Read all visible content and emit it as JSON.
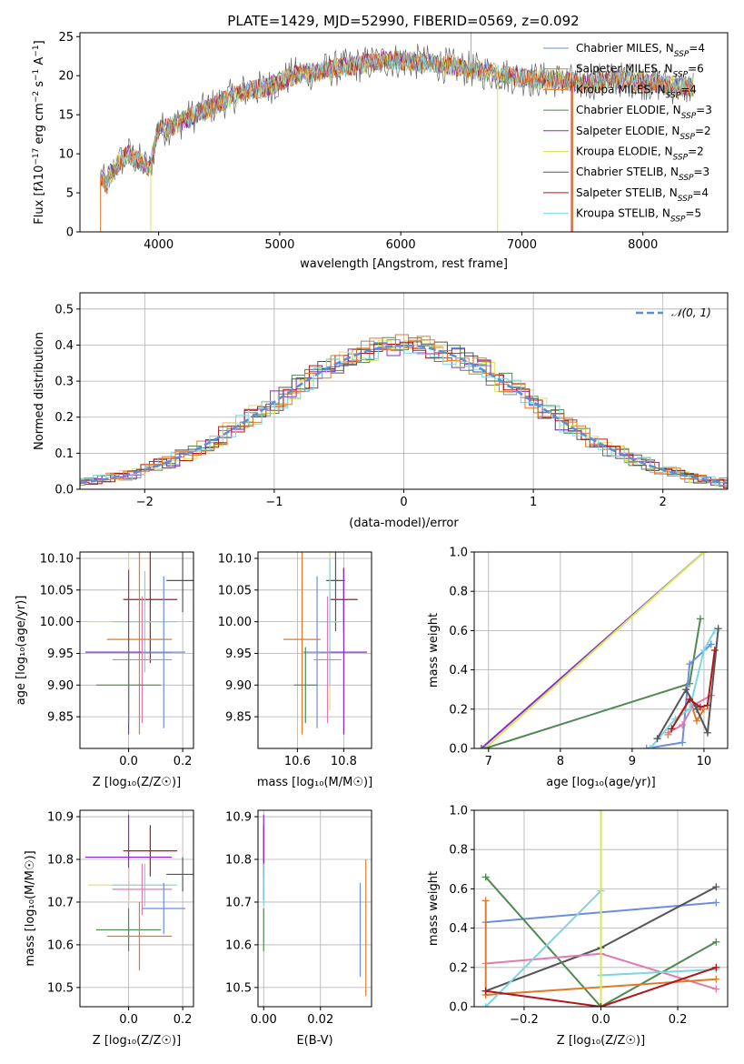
{
  "title": "PLATE=1429, MJD=52990, FIBERID=0569, z=0.092",
  "colors": {
    "chabrier_miles": "#6b8fd9",
    "salpeter_miles": "#e07a2a",
    "kroupa_miles": "#e07a2a",
    "chabrier_elodie": "#4f8a52",
    "salpeter_elodie": "#8a2bc9",
    "kroupa_elodie": "#d4e85a",
    "chabrier_stelib": "#555555",
    "salpeter_stelib": "#b01818",
    "kroupa_stelib": "#7dd6de",
    "pink": "#e07ab0",
    "gauss": "#5b8dd9"
  },
  "chart_data": [
    {
      "id": "spectrum",
      "type": "line",
      "xlabel": "wavelength [Angstrom, rest frame]",
      "ylabel_parts": [
        "Flux [f",
        "λ",
        "10",
        "−17",
        " erg cm",
        "−2",
        " s",
        "−1",
        " A",
        "−1",
        "]"
      ],
      "xlim": [
        3350,
        8700
      ],
      "ylim": [
        0,
        25.5
      ],
      "xticks": [
        4000,
        5000,
        6000,
        7000,
        8000
      ],
      "yticks": [
        0,
        5,
        10,
        15,
        20,
        25
      ],
      "spectrum_anchor_points": [
        [
          3520,
          7
        ],
        [
          3560,
          6
        ],
        [
          3650,
          8.5
        ],
        [
          3750,
          10
        ],
        [
          3850,
          9
        ],
        [
          3930,
          8
        ],
        [
          3990,
          13
        ],
        [
          4100,
          13.5
        ],
        [
          4300,
          15
        ],
        [
          4500,
          16.5
        ],
        [
          4700,
          18
        ],
        [
          4900,
          18.5
        ],
        [
          5100,
          20
        ],
        [
          5300,
          20.5
        ],
        [
          5500,
          21
        ],
        [
          5700,
          21.5
        ],
        [
          5900,
          22
        ],
        [
          6100,
          21.8
        ],
        [
          6300,
          21.5
        ],
        [
          6500,
          21
        ],
        [
          6700,
          20.5
        ],
        [
          6900,
          20
        ],
        [
          7100,
          19.5
        ],
        [
          7300,
          19.5
        ],
        [
          7500,
          19
        ],
        [
          7700,
          19.5
        ],
        [
          7900,
          19.5
        ],
        [
          8100,
          19
        ],
        [
          8300,
          18.5
        ]
      ],
      "legend": [
        {
          "label": "Chabrier MILES, N",
          "sub": "SSP",
          "tail": "=4",
          "color": "#6b8fd9"
        },
        {
          "label": "Salpeter MILES, N",
          "sub": "SSP",
          "tail": "=6",
          "color": "#e07a2a"
        },
        {
          "label": "Kroupa MILES, N",
          "sub": "SSP",
          "tail": "=4",
          "color": "#e07a2a"
        },
        {
          "label": "Chabrier ELODIE, N",
          "sub": "SSP",
          "tail": "=3",
          "color": "#4f8a52"
        },
        {
          "label": "Salpeter ELODIE, N",
          "sub": "SSP",
          "tail": "=2",
          "color": "#8a2bc9"
        },
        {
          "label": "Kroupa ELODIE, N",
          "sub": "SSP",
          "tail": "=2",
          "color": "#d4e85a"
        },
        {
          "label": "Chabrier STELIB, N",
          "sub": "SSP",
          "tail": "=3",
          "color": "#555555"
        },
        {
          "label": "Salpeter STELIB, N",
          "sub": "SSP",
          "tail": "=4",
          "color": "#b01818"
        },
        {
          "label": "Kroupa STELIB, N",
          "sub": "SSP",
          "tail": "=5",
          "color": "#7dd6de"
        }
      ]
    },
    {
      "id": "residual-histogram",
      "type": "line",
      "xlabel": "(data-model)/error",
      "ylabel": "Normed distribution",
      "xlim": [
        -2.5,
        2.5
      ],
      "ylim": [
        0,
        0.545
      ],
      "xticks": [
        -2,
        -1,
        0,
        1,
        2
      ],
      "yticks": [
        0,
        0.1,
        0.2,
        0.3,
        0.4,
        0.5
      ],
      "legend": [
        {
          "label": "𝒩(0, 1)",
          "color": "#5b8dd9",
          "style": "dashed"
        }
      ]
    },
    {
      "id": "age-vs-Z",
      "type": "scatter",
      "xlabel": "Z [log₁₀(Z/Z☉)]",
      "ylabel": "age  [log₁₀(age/yr)]",
      "xlim": [
        -0.18,
        0.24
      ],
      "ylim": [
        9.8,
        10.11
      ],
      "xticks": [
        0.0,
        0.2
      ],
      "yticks": [
        9.85,
        9.9,
        9.95,
        10.0,
        10.05,
        10.1
      ],
      "points": [
        {
          "x": 0.08,
          "y": 10.035,
          "xerr": 0.1,
          "yerr": 0.1,
          "color": "#b01818"
        },
        {
          "x": 0.2,
          "y": 10.065,
          "xerr": 0.06,
          "yerr": 0.05,
          "color": "#555555"
        },
        {
          "x": 0.0,
          "y": 10.0,
          "xerr": 0.15,
          "yerr": 0.14,
          "color": "#d4e85a"
        },
        {
          "x": 0.06,
          "y": 10.0,
          "xerr": 0.12,
          "yerr": 0.08,
          "color": "#7dd6de"
        },
        {
          "x": 0.04,
          "y": 9.972,
          "xerr": 0.12,
          "yerr": 0.15,
          "color": "#e07a2a"
        },
        {
          "x": 0.0,
          "y": 9.952,
          "xerr": 0.16,
          "yerr": 0.13,
          "color": "#8a2bc9"
        },
        {
          "x": 0.13,
          "y": 9.952,
          "xerr": 0.08,
          "yerr": 0.12,
          "color": "#6b8fd9"
        },
        {
          "x": 0.05,
          "y": 9.94,
          "xerr": 0.11,
          "yerr": 0.1,
          "color": "#e07ab0"
        },
        {
          "x": 0.0,
          "y": 9.9,
          "xerr": 0.12,
          "yerr": 0.06,
          "color": "#4f8a52"
        }
      ]
    },
    {
      "id": "age-vs-mass",
      "type": "scatter",
      "xlabel": "mass [log₁₀(M/M☉)]",
      "xlim": [
        10.43,
        10.92
      ],
      "ylim": [
        9.8,
        10.11
      ],
      "xticks": [
        10.6,
        10.8
      ],
      "yticks": [
        9.85,
        9.9,
        9.95,
        10.0,
        10.05,
        10.1
      ],
      "points": [
        {
          "x": 10.8,
          "y": 10.035,
          "xerr": 0.06,
          "yerr": 0.05,
          "color": "#b01818"
        },
        {
          "x": 10.765,
          "y": 10.065,
          "xerr": 0.04,
          "yerr": 0.08,
          "color": "#555555"
        },
        {
          "x": 10.74,
          "y": 10.0,
          "xerr": 0.04,
          "yerr": 0.14,
          "color": "#d4e85a"
        },
        {
          "x": 10.74,
          "y": 10.0,
          "xerr": 0.05,
          "yerr": 0.1,
          "color": "#7dd6de"
        },
        {
          "x": 10.62,
          "y": 9.972,
          "xerr": 0.08,
          "yerr": 0.15,
          "color": "#e07a2a"
        },
        {
          "x": 10.8,
          "y": 9.952,
          "xerr": 0.1,
          "yerr": 0.13,
          "color": "#8a2bc9"
        },
        {
          "x": 10.685,
          "y": 9.952,
          "xerr": 0.06,
          "yerr": 0.12,
          "color": "#6b8fd9"
        },
        {
          "x": 10.73,
          "y": 9.94,
          "xerr": 0.06,
          "yerr": 0.1,
          "color": "#e07ab0"
        },
        {
          "x": 10.635,
          "y": 9.9,
          "xerr": 0.05,
          "yerr": 0.06,
          "color": "#4f8a52"
        }
      ]
    },
    {
      "id": "mass-weight-vs-age",
      "type": "line",
      "xlabel": "age  [log₁₀(age/yr)]",
      "ylabel": "mass weight",
      "xlim": [
        6.8,
        10.33
      ],
      "ylim": [
        0,
        1.0
      ],
      "xticks": [
        7,
        8,
        9,
        10
      ],
      "yticks": [
        0.0,
        0.2,
        0.4,
        0.6,
        0.8,
        1.0
      ],
      "series": [
        {
          "color": "#8a2bc9",
          "points": [
            [
              6.9,
              0.0
            ],
            [
              10.0,
              1.0
            ]
          ]
        },
        {
          "color": "#d4e85a",
          "points": [
            [
              6.95,
              0.0
            ],
            [
              10.0,
              1.0
            ]
          ]
        },
        {
          "color": "#4f8a52",
          "points": [
            [
              6.95,
              0.0
            ],
            [
              9.8,
              0.33
            ],
            [
              9.95,
              0.66
            ]
          ]
        },
        {
          "color": "#6b8fd9",
          "points": [
            [
              9.2,
              0.0
            ],
            [
              9.7,
              0.03
            ],
            [
              9.8,
              0.43
            ],
            [
              10.1,
              0.53
            ]
          ]
        },
        {
          "color": "#e07a2a",
          "points": [
            [
              9.5,
              0.07
            ],
            [
              9.8,
              0.25
            ],
            [
              9.9,
              0.14
            ],
            [
              10.0,
              0.2
            ]
          ]
        },
        {
          "color": "#e07ab0",
          "points": [
            [
              9.5,
              0.08
            ],
            [
              9.7,
              0.12
            ],
            [
              9.85,
              0.22
            ],
            [
              10.1,
              0.27
            ]
          ]
        },
        {
          "color": "#7dd6de",
          "points": [
            [
              9.25,
              0.0
            ],
            [
              9.6,
              0.15
            ],
            [
              9.8,
              0.2
            ],
            [
              10.0,
              0.5
            ],
            [
              10.15,
              0.6
            ]
          ]
        },
        {
          "color": "#555555",
          "points": [
            [
              9.35,
              0.05
            ],
            [
              9.75,
              0.3
            ],
            [
              9.9,
              0.2
            ],
            [
              10.05,
              0.08
            ],
            [
              10.2,
              0.61
            ]
          ]
        },
        {
          "color": "#b01818",
          "points": [
            [
              9.55,
              0.1
            ],
            [
              9.8,
              0.25
            ],
            [
              9.95,
              0.21
            ],
            [
              10.05,
              0.22
            ],
            [
              10.15,
              0.5
            ]
          ]
        }
      ]
    },
    {
      "id": "mass-vs-Z",
      "type": "scatter",
      "xlabel": "Z [log₁₀(Z/Z☉)]",
      "ylabel": "mass [log₁₀(M/M☉)]",
      "xlim": [
        -0.18,
        0.24
      ],
      "ylim": [
        10.455,
        10.915
      ],
      "xticks": [
        0.0,
        0.2
      ],
      "yticks": [
        10.5,
        10.6,
        10.7,
        10.8,
        10.9
      ],
      "points": [
        {
          "x": 0.08,
          "y": 10.82,
          "xerr": 0.1,
          "yerr": 0.06,
          "color": "#b01818"
        },
        {
          "x": 0.0,
          "y": 10.805,
          "xerr": 0.16,
          "yerr": 0.1,
          "color": "#8a2bc9"
        },
        {
          "x": 0.2,
          "y": 10.765,
          "xerr": 0.06,
          "yerr": 0.04,
          "color": "#555555"
        },
        {
          "x": 0.0,
          "y": 10.74,
          "xerr": 0.15,
          "yerr": 0.04,
          "color": "#d4e85a"
        },
        {
          "x": 0.06,
          "y": 10.74,
          "xerr": 0.12,
          "yerr": 0.05,
          "color": "#7dd6de"
        },
        {
          "x": 0.05,
          "y": 10.73,
          "xerr": 0.11,
          "yerr": 0.06,
          "color": "#e07ab0"
        },
        {
          "x": 0.13,
          "y": 10.685,
          "xerr": 0.08,
          "yerr": 0.06,
          "color": "#6b8fd9"
        },
        {
          "x": 0.0,
          "y": 10.635,
          "xerr": 0.12,
          "yerr": 0.05,
          "color": "#4f8a52"
        },
        {
          "x": 0.04,
          "y": 10.62,
          "xerr": 0.12,
          "yerr": 0.08,
          "color": "#e07a2a"
        }
      ]
    },
    {
      "id": "mass-vs-EBV",
      "type": "scatter",
      "xlabel": "E(B-V)",
      "xlim": [
        -0.002,
        0.038
      ],
      "ylim": [
        10.455,
        10.915
      ],
      "xticks": [
        0.0,
        0.02
      ],
      "yticks": [
        10.5,
        10.6,
        10.7,
        10.8,
        10.9
      ],
      "points": [
        {
          "x": 0.0,
          "y": 10.82,
          "yerr": 0.06,
          "color": "#b01818"
        },
        {
          "x": 0.0,
          "y": 10.805,
          "yerr": 0.1,
          "color": "#8a2bc9"
        },
        {
          "x": 0.0,
          "y": 10.74,
          "yerr": 0.05,
          "color": "#7dd6de"
        },
        {
          "x": 0.0,
          "y": 10.635,
          "yerr": 0.05,
          "color": "#4f8a52"
        },
        {
          "x": 0.034,
          "y": 10.635,
          "yerr": 0.11,
          "color": "#6b8fd9"
        },
        {
          "x": 0.036,
          "y": 10.64,
          "yerr": 0.16,
          "color": "#e07a2a"
        }
      ]
    },
    {
      "id": "mass-weight-vs-Z",
      "type": "line",
      "xlabel": "Z [log₁₀(Z/Z☉)]",
      "ylabel": "mass weight",
      "xlim": [
        -0.33,
        0.33
      ],
      "ylim": [
        0,
        1.0
      ],
      "xticks": [
        -0.2,
        0.0,
        0.2
      ],
      "yticks": [
        0.0,
        0.2,
        0.4,
        0.6,
        0.8,
        1.0
      ],
      "series": [
        {
          "color": "#6b8fd9",
          "points": [
            [
              -0.3,
              0.43
            ],
            [
              0.3,
              0.53
            ]
          ]
        },
        {
          "color": "#555555",
          "points": [
            [
              -0.3,
              0.08
            ],
            [
              0.0,
              0.3
            ],
            [
              0.3,
              0.61
            ]
          ]
        },
        {
          "color": "#4f8a52",
          "points": [
            [
              -0.3,
              0.66
            ],
            [
              0.0,
              0.0
            ],
            [
              0.3,
              0.33
            ]
          ]
        },
        {
          "color": "#e07ab0",
          "points": [
            [
              -0.3,
              0.22
            ],
            [
              0.0,
              0.27
            ],
            [
              0.3,
              0.09
            ]
          ]
        },
        {
          "color": "#e07a2a",
          "points": [
            [
              -0.3,
              0.54
            ],
            [
              -0.3,
              0.06
            ],
            [
              0.3,
              0.14
            ]
          ]
        },
        {
          "color": "#7dd6de",
          "points": [
            [
              -0.3,
              0.0
            ],
            [
              0.0,
              0.59
            ],
            [
              0.0,
              0.16
            ],
            [
              0.3,
              0.19
            ]
          ]
        },
        {
          "color": "#d4e85a",
          "points": [
            [
              0.0,
              1.0
            ],
            [
              0.0,
              0.0
            ]
          ]
        },
        {
          "color": "#b01818",
          "points": [
            [
              -0.3,
              0.08
            ],
            [
              0.0,
              0.0
            ],
            [
              0.3,
              0.2
            ]
          ]
        }
      ]
    }
  ]
}
